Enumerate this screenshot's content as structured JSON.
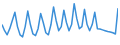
{
  "chart_data": {
    "type": "line",
    "color": "#3b8fd8",
    "tick_labels": false,
    "x": [
      0,
      1,
      2,
      3,
      4,
      5,
      6,
      7,
      8,
      9,
      10,
      11,
      12,
      13,
      14,
      15,
      16,
      17,
      18,
      19,
      20,
      21,
      22,
      23,
      24,
      25,
      26,
      27,
      28,
      29,
      30,
      31,
      32,
      33,
      34,
      35,
      36,
      37,
      38,
      39,
      40,
      41,
      42,
      43,
      44,
      45
    ],
    "values": [
      45,
      30,
      20,
      35,
      55,
      75,
      40,
      20,
      15,
      40,
      78,
      45,
      22,
      18,
      35,
      72,
      50,
      25,
      20,
      45,
      88,
      55,
      30,
      40,
      80,
      50,
      30,
      45,
      96,
      60,
      35,
      40,
      82,
      45,
      30,
      45,
      75,
      35,
      34,
      32,
      30,
      28,
      27,
      25,
      22,
      85
    ],
    "xlim": [
      0,
      45
    ],
    "ylim": [
      0,
      100
    ]
  }
}
